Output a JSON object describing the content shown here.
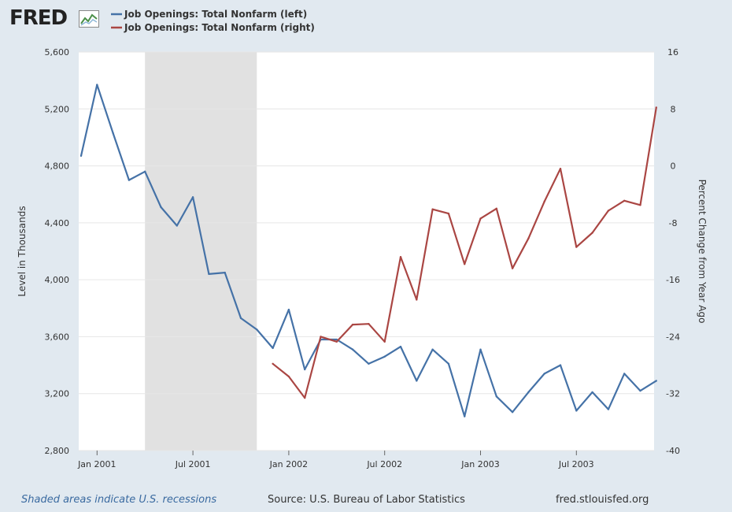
{
  "brand": {
    "logo_text": "FRED"
  },
  "footer": {
    "note": "Shaded areas indicate U.S. recessions",
    "source": "Source: U.S. Bureau of Labor Statistics",
    "url": "fred.stlouisfed.org"
  },
  "chart_data": {
    "type": "line",
    "x_ticks": [
      "Jan 2001",
      "Jul 2001",
      "Jan 2002",
      "Jul 2002",
      "Jan 2003",
      "Jul 2003"
    ],
    "left_axis": {
      "label": "Level in Thousands",
      "ylim": [
        2800,
        5600
      ],
      "ticks": [
        "2,800",
        "3,200",
        "3,600",
        "4,000",
        "4,400",
        "4,800",
        "5,200",
        "5,600"
      ]
    },
    "right_axis": {
      "label": "Percent Change from Year Ago",
      "ylim": [
        -40,
        16
      ],
      "ticks": [
        "-40",
        "-32",
        "-24",
        "-16",
        "-8",
        "0",
        "8",
        "16"
      ]
    },
    "recession": {
      "start": "2001-04",
      "end": "2001-11"
    },
    "grid": true,
    "legend_position": "top-left",
    "series": [
      {
        "name": "Job Openings: Total Nonfarm (left)",
        "color": "#4572a7",
        "axis": "left",
        "dates": [
          "2000-12",
          "2001-01",
          "2001-02",
          "2001-03",
          "2001-04",
          "2001-05",
          "2001-06",
          "2001-07",
          "2001-08",
          "2001-09",
          "2001-10",
          "2001-11",
          "2001-12",
          "2002-01",
          "2002-02",
          "2002-03",
          "2002-04",
          "2002-05",
          "2002-06",
          "2002-07",
          "2002-08",
          "2002-09",
          "2002-10",
          "2002-11",
          "2002-12",
          "2003-01",
          "2003-02",
          "2003-03",
          "2003-04",
          "2003-05",
          "2003-06",
          "2003-07",
          "2003-08",
          "2003-09",
          "2003-10",
          "2003-11",
          "2003-12"
        ],
        "values": [
          4870,
          5370,
          5030,
          4700,
          4760,
          4510,
          4380,
          4580,
          4040,
          4050,
          3730,
          3650,
          3520,
          3790,
          3370,
          3580,
          3580,
          3510,
          3410,
          3460,
          3530,
          3290,
          3510,
          3410,
          3040,
          3510,
          3180,
          3070,
          3210,
          3340,
          3400,
          3080,
          3210,
          3090,
          3340,
          3220,
          3290
        ]
      },
      {
        "name": "Job Openings: Total Nonfarm (right)",
        "color": "#aa4643",
        "axis": "right",
        "dates": [
          "2001-12",
          "2002-01",
          "2002-02",
          "2002-03",
          "2002-04",
          "2002-05",
          "2002-06",
          "2002-07",
          "2002-08",
          "2002-09",
          "2002-10",
          "2002-11",
          "2002-12",
          "2003-01",
          "2003-02",
          "2003-03",
          "2003-04",
          "2003-05",
          "2003-06",
          "2003-07",
          "2003-08",
          "2003-09",
          "2003-10",
          "2003-11",
          "2003-12"
        ],
        "values": [
          -27.8,
          -29.6,
          -32.6,
          -24.0,
          -24.7,
          -22.3,
          -22.2,
          -24.7,
          -12.8,
          -18.8,
          -6.1,
          -6.7,
          -13.8,
          -7.4,
          -6.0,
          -14.4,
          -10.2,
          -5.0,
          -0.4,
          -11.4,
          -9.4,
          -6.3,
          -4.9,
          -5.5,
          8.2
        ]
      }
    ]
  }
}
